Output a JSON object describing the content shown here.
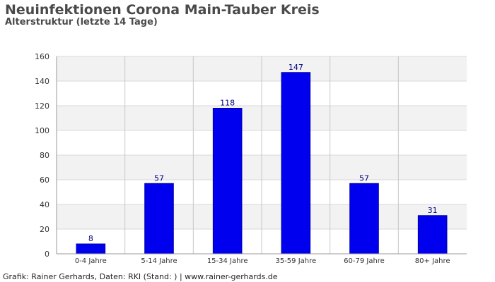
{
  "chart_data": {
    "type": "bar",
    "title": "Neuinfektionen Corona Main-Tauber Kreis",
    "subtitle": "Alterstruktur (letzte 14 Tage)",
    "categories": [
      "0-4 Jahre",
      "5-14 Jahre",
      "15-34 Jahre",
      "35-59 Jahre",
      "60-79 Jahre",
      "80+ Jahre"
    ],
    "values": [
      8,
      57,
      118,
      147,
      57,
      31
    ],
    "xlabel": "",
    "ylabel": "",
    "ylim": [
      0,
      160
    ],
    "yticks": [
      0,
      20,
      40,
      60,
      80,
      100,
      120,
      140,
      160
    ],
    "grid": true,
    "data_labels": true,
    "bar_color": "#0000ee",
    "bar_border_color": "#0000aa",
    "label_color": "#000080",
    "band_colors": [
      "#f2f2f2",
      "#ffffff"
    ]
  },
  "footer": "Grafik: Rainer Gerhards, Daten: RKI (Stand: ) | www.rainer-gerhards.de"
}
